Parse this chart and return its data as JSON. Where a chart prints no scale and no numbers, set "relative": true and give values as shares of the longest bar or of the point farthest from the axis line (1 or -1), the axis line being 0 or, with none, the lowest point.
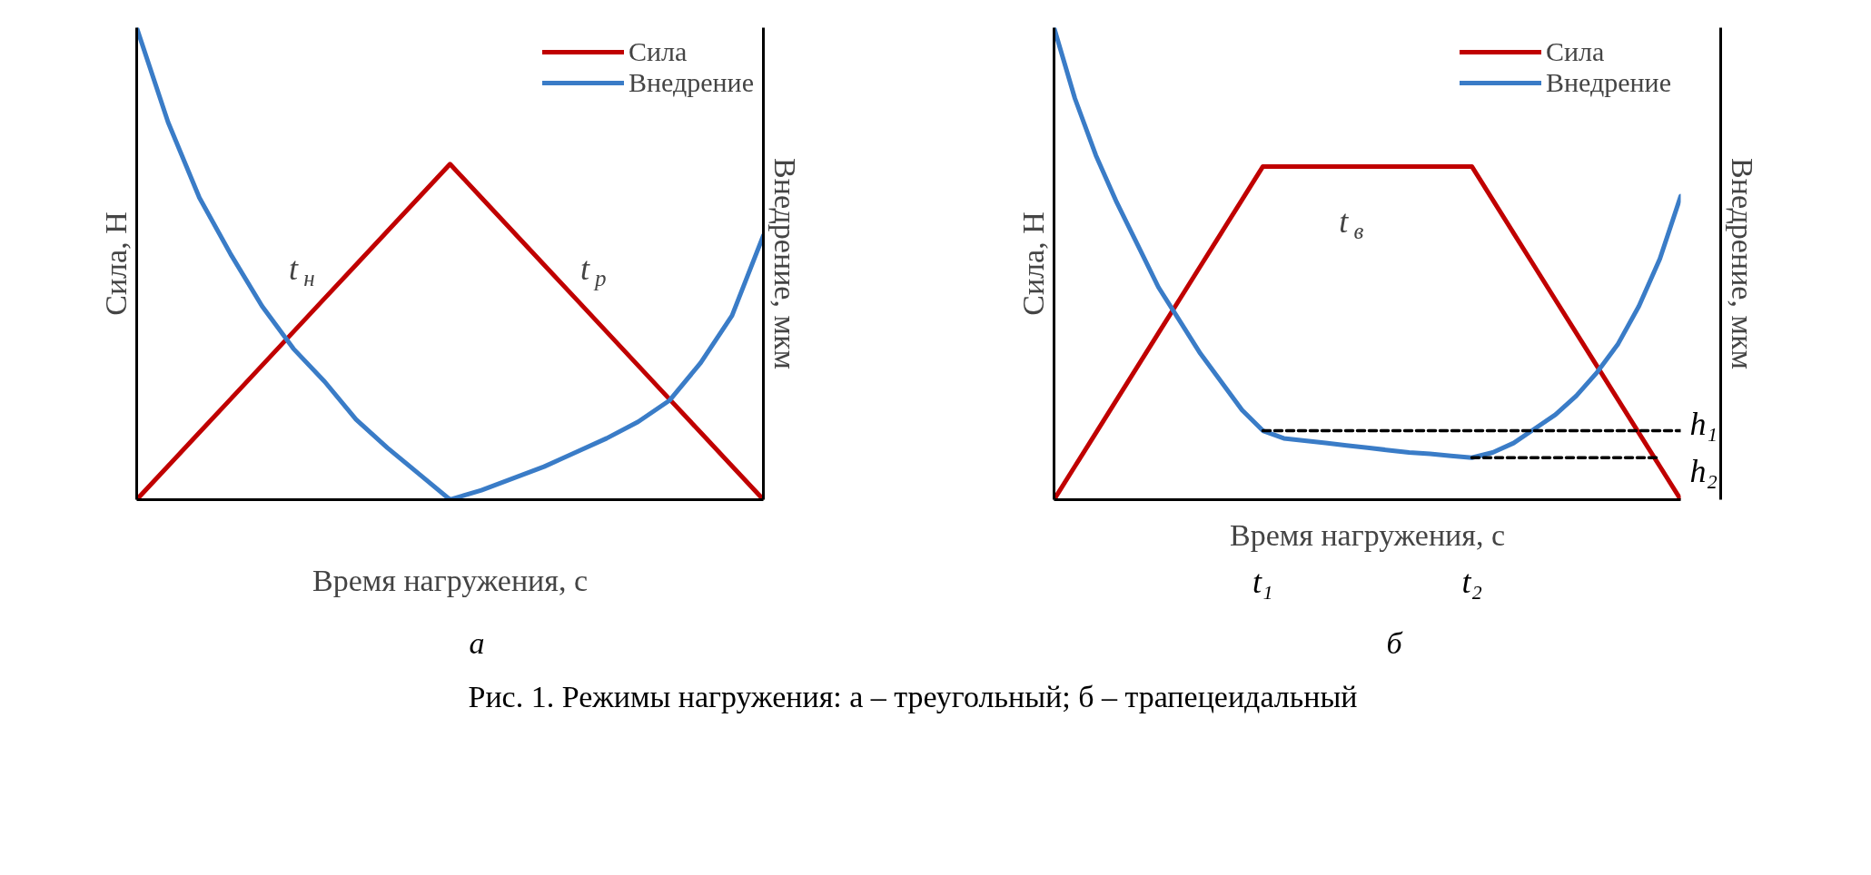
{
  "chart_data": [
    {
      "type": "line",
      "relative": true,
      "ylabel": "Сила, Н",
      "y2label": "Внедрение, мкм",
      "xlabel": "Время нагружения, с",
      "legend": "top right",
      "marker": "none",
      "categories": [
        null,
        null,
        null,
        null,
        null,
        null,
        null,
        null,
        null,
        null,
        null,
        null,
        null,
        null,
        null,
        null,
        null,
        null,
        null,
        null,
        null
      ],
      "series": [
        {
          "name": "Сила",
          "color": "#c00000",
          "values": [
            0,
            0.0711,
            0.1422,
            0.2133,
            0.2844,
            0.3555,
            0.4266,
            0.4977,
            0.5688,
            0.6399,
            0.711,
            0.6399,
            0.5688,
            0.4977,
            0.4266,
            0.3555,
            0.2844,
            0.2133,
            0.1422,
            0.0711,
            0
          ]
        },
        {
          "name": "Внедрение",
          "color": "#3a7cc7",
          "values": [
            1.0,
            0.8,
            0.64,
            0.52,
            0.41,
            0.32,
            0.25,
            0.17,
            0.11,
            0.055,
            0,
            0.02,
            0.045,
            0.07,
            0.1,
            0.13,
            0.165,
            0.21,
            0.29,
            0.39,
            0.56
          ]
        }
      ],
      "annotations": [
        "t$_{н}$",
        "t$_{р}$",
        "а"
      ]
    },
    {
      "type": "line",
      "relative": true,
      "ylabel": "Сила, Н",
      "y2label": "Внедрение, мкм",
      "xlabel": "Время нагружения, с",
      "legend": "top right",
      "marker": "none",
      "categories": [
        null,
        null,
        null,
        null,
        null,
        null,
        null,
        null,
        null,
        null,
        null,
        null,
        null,
        null,
        null,
        null,
        null,
        null,
        null,
        null,
        null,
        null,
        null,
        null,
        null,
        null,
        null,
        null,
        null,
        null,
        null
      ],
      "series": [
        {
          "name": "Сила",
          "color": "#c00000",
          "values": [
            0,
            0.0706,
            0.1412,
            0.2118,
            0.2824,
            0.353,
            0.4236,
            0.4942,
            0.5648,
            0.6354,
            0.706,
            0.706,
            0.706,
            0.706,
            0.706,
            0.706,
            0.706,
            0.706,
            0.706,
            0.706,
            0.706,
            0.6354,
            0.5648,
            0.4942,
            0.4236,
            0.353,
            0.2824,
            0.2118,
            0.1412,
            0.0706,
            0
          ]
        },
        {
          "name": "Внедрение",
          "color": "#3a7cc7",
          "values": [
            1.0,
            0.85,
            0.73,
            0.63,
            0.54,
            0.45,
            0.38,
            0.31,
            0.25,
            0.19,
            0.146,
            0.13,
            0.125,
            0.12,
            0.115,
            0.11,
            0.105,
            0.1,
            0.097,
            0.093,
            0.089,
            0.1,
            0.12,
            0.15,
            0.18,
            0.22,
            0.27,
            0.33,
            0.41,
            0.51,
            0.643
          ]
        },
        {
          "type": "line",
          "line_style": "dashed",
          "color": "#000000",
          "values": [
            null,
            null,
            null,
            null,
            null,
            null,
            null,
            null,
            null,
            null,
            0.146,
            0.146,
            0.146,
            0.146,
            0.146,
            0.146,
            0.146,
            0.146,
            0.146,
            0.146,
            0.146,
            0.146,
            0.146,
            0.146,
            0.146,
            0.146,
            0.146,
            0.146,
            0.146,
            0.146,
            0.146
          ]
        },
        {
          "type": "line",
          "line_style": "dashed",
          "color": "#000000",
          "values": [
            null,
            null,
            null,
            null,
            null,
            null,
            null,
            null,
            null,
            null,
            null,
            null,
            null,
            null,
            null,
            null,
            null,
            null,
            null,
            null,
            0.089,
            0.089,
            0.089,
            0.089,
            0.089,
            0.089,
            0.089,
            0.089,
            0.089,
            0.089,
            null
          ]
        }
      ],
      "annotations": [
        "t$_{в}$",
        "t₁",
        "t₂",
        "h₁",
        "h₂",
        "б",
        "Рис. 1. Режимы нагружения: а – треугольный; б – трапецеидальный"
      ]
    }
  ]
}
